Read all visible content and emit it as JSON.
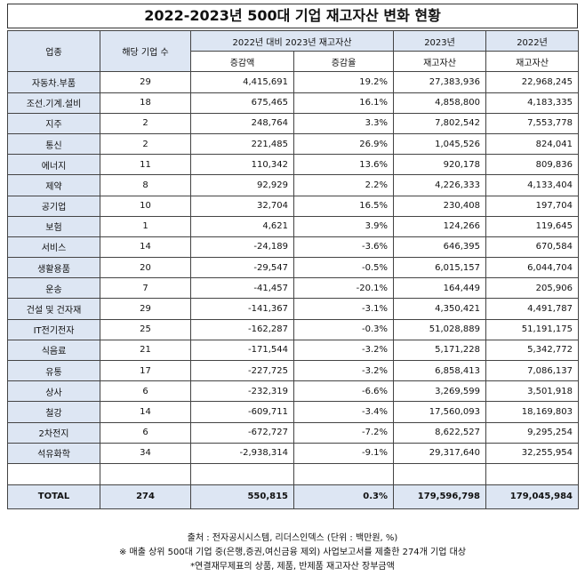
{
  "title": "2022-2023년 500대 기업 재고자산 변화 현황",
  "headers": {
    "industry": "업종",
    "count": "해당 기업 수",
    "change_group": "2022년 대비 2023년 재고자산",
    "y2023": "2023년",
    "y2022": "2022년",
    "increase_amount": "증감액",
    "increase_rate": "증감율",
    "inventory_2023": "재고자산",
    "inventory_2022": "재고자산"
  },
  "rows": [
    {
      "industry": "자동차.부품",
      "count": "29",
      "amount": "4,415,691",
      "rate": "19.2%",
      "y2023": "27,383,936",
      "y2022": "22,968,245"
    },
    {
      "industry": "조선.기계.설비",
      "count": "18",
      "amount": "675,465",
      "rate": "16.1%",
      "y2023": "4,858,800",
      "y2022": "4,183,335"
    },
    {
      "industry": "지주",
      "count": "2",
      "amount": "248,764",
      "rate": "3.3%",
      "y2023": "7,802,542",
      "y2022": "7,553,778"
    },
    {
      "industry": "통신",
      "count": "2",
      "amount": "221,485",
      "rate": "26.9%",
      "y2023": "1,045,526",
      "y2022": "824,041"
    },
    {
      "industry": "에너지",
      "count": "11",
      "amount": "110,342",
      "rate": "13.6%",
      "y2023": "920,178",
      "y2022": "809,836"
    },
    {
      "industry": "제약",
      "count": "8",
      "amount": "92,929",
      "rate": "2.2%",
      "y2023": "4,226,333",
      "y2022": "4,133,404"
    },
    {
      "industry": "공기업",
      "count": "10",
      "amount": "32,704",
      "rate": "16.5%",
      "y2023": "230,408",
      "y2022": "197,704"
    },
    {
      "industry": "보험",
      "count": "1",
      "amount": "4,621",
      "rate": "3.9%",
      "y2023": "124,266",
      "y2022": "119,645"
    },
    {
      "industry": "서비스",
      "count": "14",
      "amount": "-24,189",
      "rate": "-3.6%",
      "y2023": "646,395",
      "y2022": "670,584"
    },
    {
      "industry": "생활용품",
      "count": "20",
      "amount": "-29,547",
      "rate": "-0.5%",
      "y2023": "6,015,157",
      "y2022": "6,044,704"
    },
    {
      "industry": "운송",
      "count": "7",
      "amount": "-41,457",
      "rate": "-20.1%",
      "y2023": "164,449",
      "y2022": "205,906"
    },
    {
      "industry": "건설 및 건자재",
      "count": "29",
      "amount": "-141,367",
      "rate": "-3.1%",
      "y2023": "4,350,421",
      "y2022": "4,491,787"
    },
    {
      "industry": "IT전기전자",
      "count": "25",
      "amount": "-162,287",
      "rate": "-0.3%",
      "y2023": "51,028,889",
      "y2022": "51,191,175"
    },
    {
      "industry": "식음료",
      "count": "21",
      "amount": "-171,544",
      "rate": "-3.2%",
      "y2023": "5,171,228",
      "y2022": "5,342,772"
    },
    {
      "industry": "유통",
      "count": "17",
      "amount": "-227,725",
      "rate": "-3.2%",
      "y2023": "6,858,413",
      "y2022": "7,086,137"
    },
    {
      "industry": "상사",
      "count": "6",
      "amount": "-232,319",
      "rate": "-6.6%",
      "y2023": "3,269,599",
      "y2022": "3,501,918"
    },
    {
      "industry": "철강",
      "count": "14",
      "amount": "-609,711",
      "rate": "-3.4%",
      "y2023": "17,560,093",
      "y2022": "18,169,803"
    },
    {
      "industry": "2차전지",
      "count": "6",
      "amount": "-672,727",
      "rate": "-7.2%",
      "y2023": "8,622,527",
      "y2022": "9,295,254"
    },
    {
      "industry": "석유화학",
      "count": "34",
      "amount": "-2,938,314",
      "rate": "-9.1%",
      "y2023": "29,317,640",
      "y2022": "32,255,954"
    }
  ],
  "total": {
    "label": "TOTAL",
    "count": "274",
    "amount": "550,815",
    "rate": "0.3%",
    "y2023": "179,596,798",
    "y2022": "179,045,984"
  },
  "notes": [
    "출처 : 전자공시시스템, 리더스인덱스 (단위 : 백만원, %)",
    "※ 매출 상위 500대 기업 중(은행,증권,여신금융 제외) 사업보고서를 제출한 274개 기업 대상",
    "*연결재무제표의 상품, 제품, 반제품 재고자산 장부금액"
  ]
}
